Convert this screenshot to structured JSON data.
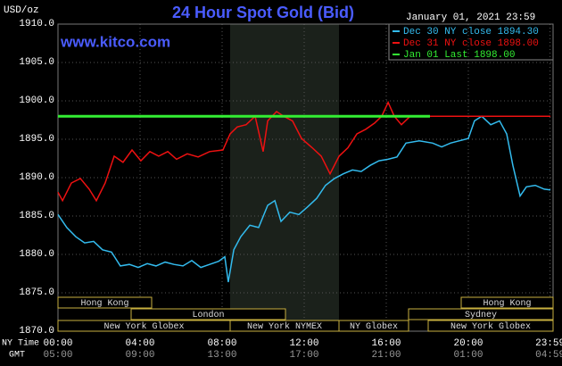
{
  "chart_data": {
    "type": "line",
    "title": "24 Hour Spot Gold (Bid)",
    "subtitle": "www.kitco.com",
    "timestamp": "January 01, 2021 23:59",
    "ylabel": "USD/oz",
    "xlabel": "NY Time",
    "xlabel2": "GMT",
    "xlim": [
      0,
      24
    ],
    "ylim": [
      1870,
      1910
    ],
    "yticks": [
      {
        "value": 1870,
        "label": "1870.0"
      },
      {
        "value": 1875,
        "label": "1875.0"
      },
      {
        "value": 1880,
        "label": "1880.0"
      },
      {
        "value": 1885,
        "label": "1885.0"
      },
      {
        "value": 1890,
        "label": "1890.0"
      },
      {
        "value": 1895,
        "label": "1895.0"
      },
      {
        "value": 1900,
        "label": "1900.0"
      },
      {
        "value": 1905,
        "label": "1905.0"
      },
      {
        "value": 1910,
        "label": "1910.0"
      }
    ],
    "xticks": [
      {
        "value": 0,
        "label": "00:00"
      },
      {
        "value": 4,
        "label": "04:00"
      },
      {
        "value": 8,
        "label": "08:00"
      },
      {
        "value": 12,
        "label": "12:00"
      },
      {
        "value": 16,
        "label": "16:00"
      },
      {
        "value": 20,
        "label": "20:00"
      },
      {
        "value": 23.983,
        "label": "23:59"
      }
    ],
    "gmt_labels": [
      "05:00",
      "09:00",
      "13:00",
      "17:00",
      "21:00",
      "01:00",
      "04:59"
    ],
    "sessions": [
      "Hong Kong",
      "London",
      "New York Globex",
      "New York NYMEX",
      "NY Globex",
      "Hong Kong",
      "Sydney",
      "New York Globex"
    ],
    "grid": true,
    "series": [
      {
        "name": "Dec 30 NY close 1894.30",
        "color": "#33bbee",
        "x": [
          0,
          0.43,
          0.87,
          1.3,
          1.74,
          2.17,
          2.61,
          3.04,
          3.48,
          3.91,
          4.35,
          4.78,
          5.22,
          5.65,
          6.09,
          6.52,
          6.96,
          7.39,
          7.83,
          8.13,
          8.3,
          8.57,
          8.91,
          9.35,
          9.78,
          10.22,
          10.57,
          10.87,
          11.3,
          11.74,
          12.17,
          12.61,
          13.04,
          13.48,
          13.91,
          14.35,
          14.78,
          15.22,
          15.65,
          16.09,
          16.52,
          16.96,
          17.61,
          18.26,
          18.7,
          19.13,
          19.57,
          20.0,
          20.3,
          20.65,
          21.09,
          21.52,
          21.87,
          22.17,
          22.52,
          22.83,
          23.26,
          23.7,
          24
        ],
        "values": [
          1885.2,
          1883.5,
          1882.3,
          1881.5,
          1881.7,
          1880.6,
          1880.3,
          1878.5,
          1878.7,
          1878.3,
          1878.8,
          1878.5,
          1879,
          1878.7,
          1878.5,
          1879.2,
          1878.3,
          1878.7,
          1879.1,
          1879.7,
          1876.4,
          1880.6,
          1882.3,
          1883.8,
          1883.5,
          1886.4,
          1887,
          1884.3,
          1885.5,
          1885.2,
          1886.2,
          1887.3,
          1889,
          1889.9,
          1890.5,
          1891,
          1890.8,
          1891.6,
          1892.2,
          1892.4,
          1892.7,
          1894.5,
          1894.8,
          1894.5,
          1894,
          1894.5,
          1894.8,
          1895.1,
          1897.4,
          1898,
          1896.9,
          1897.4,
          1895.7,
          1891.6,
          1887.6,
          1888.8,
          1889,
          1888.5,
          1888.4
        ]
      },
      {
        "name": "Dec 31 NY close 1898.00",
        "color": "#ee1111",
        "x": [
          0,
          0.22,
          0.65,
          1.09,
          1.52,
          1.87,
          2.3,
          2.74,
          3.17,
          3.61,
          4.04,
          4.48,
          4.91,
          5.35,
          5.78,
          6.3,
          6.83,
          7.39,
          8.04,
          8.39,
          8.74,
          9.17,
          9.61,
          10.0,
          10.22,
          10.65,
          11.0,
          11.43,
          11.87,
          12.39,
          12.83,
          13.26,
          13.7,
          14.13,
          14.57,
          15.0,
          15.43,
          15.78,
          16.09,
          16.39,
          16.74,
          17.17,
          17.5,
          18.13,
          24
        ],
        "values": [
          1888.1,
          1887,
          1889.3,
          1889.9,
          1888.5,
          1887,
          1889.3,
          1892.8,
          1892,
          1893.6,
          1892.2,
          1893.4,
          1892.8,
          1893.4,
          1892.4,
          1893.1,
          1892.7,
          1893.4,
          1893.6,
          1895.7,
          1896.6,
          1896.9,
          1898,
          1893.4,
          1897.4,
          1898.6,
          1898,
          1897.4,
          1895.1,
          1893.9,
          1892.8,
          1890.5,
          1892.8,
          1893.9,
          1895.7,
          1896.3,
          1897.1,
          1898,
          1899.8,
          1898,
          1896.9,
          1898,
          null,
          1898,
          1898
        ]
      },
      {
        "name": "Jan 01 Last 1898.00",
        "color": "#33ee33",
        "x": [
          0,
          18.13
        ],
        "values": [
          1898,
          1898
        ]
      }
    ]
  }
}
